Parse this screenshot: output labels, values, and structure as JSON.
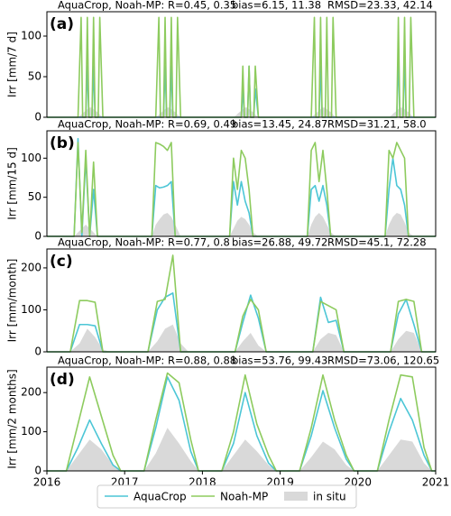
{
  "chart_data": [
    {
      "type": "line",
      "label": "(a)",
      "ylabel": "Irr [mm/7 d]",
      "stats": [
        "AquaCrop, Noah-MP: R=0.45, 0.35",
        "bias=6.15, 11.38",
        "RMSD=23.33, 42.14"
      ],
      "xlim": [
        2016,
        2021
      ],
      "ylim": [
        0,
        130
      ],
      "yticks": [
        0,
        50,
        100
      ],
      "x": [
        2016,
        2016.4,
        2016.44,
        2016.46,
        2016.5,
        2016.52,
        2016.54,
        2016.58,
        2016.6,
        2016.62,
        2016.66,
        2016.68,
        2016.72,
        2017.4,
        2017.44,
        2017.46,
        2017.5,
        2017.52,
        2017.54,
        2017.58,
        2017.6,
        2017.62,
        2017.66,
        2017.68,
        2017.72,
        2018.4,
        2018.44,
        2018.46,
        2018.5,
        2018.52,
        2018.54,
        2018.58,
        2018.6,
        2018.62,
        2018.66,
        2018.68,
        2018.72,
        2019.4,
        2019.44,
        2019.46,
        2019.5,
        2019.52,
        2019.54,
        2019.58,
        2019.6,
        2019.62,
        2019.66,
        2019.68,
        2019.72,
        2020.4,
        2020.44,
        2020.46,
        2020.5,
        2020.52,
        2020.54,
        2020.58,
        2020.6,
        2020.62,
        2020.66,
        2020.68,
        2020.72,
        2021
      ],
      "series": [
        {
          "name": "AquaCrop",
          "color": "#4cc6d6",
          "style": "line",
          "values": [
            0,
            0,
            0,
            0,
            0,
            63,
            0,
            0,
            63,
            0,
            0,
            0,
            0,
            0,
            0,
            0,
            0,
            63,
            0,
            0,
            63,
            0,
            0,
            0,
            0,
            0,
            0,
            0,
            0,
            35,
            0,
            0,
            63,
            0,
            0,
            35,
            0,
            0,
            0,
            0,
            0,
            63,
            0,
            0,
            0,
            0,
            0,
            0,
            0,
            0,
            0,
            0,
            0,
            75,
            0,
            0,
            75,
            0,
            0,
            0,
            0,
            0
          ]
        },
        {
          "name": "Noah-MP",
          "color": "#8dcb5e",
          "style": "line",
          "values": [
            0,
            0,
            123,
            0,
            0,
            123,
            0,
            0,
            123,
            0,
            0,
            123,
            0,
            0,
            123,
            0,
            0,
            123,
            0,
            0,
            123,
            0,
            0,
            123,
            0,
            0,
            0,
            0,
            0,
            63,
            0,
            0,
            63,
            0,
            0,
            63,
            0,
            0,
            123,
            0,
            0,
            123,
            0,
            0,
            123,
            0,
            0,
            123,
            0,
            0,
            0,
            0,
            0,
            123,
            0,
            0,
            123,
            0,
            0,
            123,
            0,
            0
          ]
        },
        {
          "name": "in situ",
          "color": "#d9d9d9",
          "style": "area",
          "values": [
            0,
            0,
            3,
            5,
            8,
            10,
            12,
            12,
            10,
            8,
            6,
            3,
            0,
            0,
            3,
            5,
            8,
            10,
            12,
            12,
            10,
            8,
            6,
            3,
            0,
            0,
            3,
            5,
            8,
            10,
            12,
            12,
            10,
            8,
            6,
            3,
            0,
            0,
            3,
            5,
            8,
            10,
            12,
            12,
            10,
            8,
            6,
            3,
            0,
            0,
            3,
            5,
            8,
            10,
            12,
            12,
            10,
            8,
            6,
            3,
            0,
            0
          ]
        }
      ]
    },
    {
      "type": "line",
      "label": "(b)",
      "ylabel": "Irr [mm/15 d]",
      "stats": [
        "AquaCrop, Noah-MP: R=0.69, 0.49",
        "bias=13.45, 24.87",
        "RMSD=31.21, 58.0"
      ],
      "xlim": [
        2016,
        2021
      ],
      "ylim": [
        0,
        135
      ],
      "yticks": [
        0,
        50,
        100
      ],
      "x": [
        2016,
        2016.35,
        2016.4,
        2016.45,
        2016.5,
        2016.55,
        2016.6,
        2016.65,
        2016.72,
        2017.35,
        2017.4,
        2017.45,
        2017.5,
        2017.55,
        2017.6,
        2017.65,
        2017.72,
        2018.35,
        2018.4,
        2018.45,
        2018.5,
        2018.55,
        2018.6,
        2018.65,
        2018.72,
        2019.35,
        2019.4,
        2019.45,
        2019.5,
        2019.55,
        2019.6,
        2019.65,
        2019.72,
        2020.35,
        2020.4,
        2020.45,
        2020.5,
        2020.55,
        2020.6,
        2020.65,
        2020.72,
        2021
      ],
      "series": [
        {
          "name": "AquaCrop",
          "color": "#4cc6d6",
          "style": "line",
          "values": [
            0,
            0,
            125,
            0,
            100,
            0,
            60,
            0,
            0,
            0,
            65,
            62,
            63,
            65,
            70,
            0,
            0,
            0,
            70,
            40,
            70,
            45,
            30,
            0,
            0,
            0,
            60,
            65,
            45,
            65,
            40,
            0,
            0,
            0,
            60,
            100,
            65,
            60,
            40,
            0,
            0,
            0
          ]
        },
        {
          "name": "Noah-MP",
          "color": "#8dcb5e",
          "style": "line",
          "values": [
            0,
            0,
            120,
            5,
            110,
            0,
            95,
            0,
            0,
            0,
            120,
            118,
            115,
            110,
            120,
            0,
            0,
            0,
            100,
            60,
            110,
            100,
            60,
            0,
            0,
            0,
            110,
            120,
            70,
            110,
            60,
            0,
            0,
            0,
            110,
            100,
            120,
            110,
            100,
            0,
            0,
            0
          ]
        },
        {
          "name": "in situ",
          "color": "#d9d9d9",
          "style": "area",
          "values": [
            0,
            0,
            5,
            10,
            15,
            10,
            5,
            0,
            0,
            0,
            15,
            22,
            28,
            30,
            25,
            15,
            0,
            0,
            10,
            20,
            25,
            22,
            15,
            5,
            0,
            0,
            15,
            25,
            30,
            25,
            15,
            5,
            0,
            0,
            15,
            25,
            30,
            28,
            18,
            5,
            0,
            0
          ]
        }
      ]
    },
    {
      "type": "line",
      "label": "(c)",
      "ylabel": "Irr [mm/month]",
      "stats": [
        "AquaCrop, Noah-MP: R=0.77, 0.8",
        "bias=26.88, 49.72",
        "RMSD=45.1, 72.28"
      ],
      "xlim": [
        2016,
        2021
      ],
      "ylim": [
        0,
        245
      ],
      "yticks": [
        0,
        100,
        200
      ],
      "x": [
        2016,
        2016.3,
        2016.42,
        2016.52,
        2016.62,
        2016.72,
        2016.82,
        2017.3,
        2017.42,
        2017.52,
        2017.62,
        2017.72,
        2017.82,
        2018.3,
        2018.42,
        2018.52,
        2018.62,
        2018.72,
        2018.82,
        2019.3,
        2019.42,
        2019.52,
        2019.62,
        2019.72,
        2019.82,
        2020.3,
        2020.42,
        2020.52,
        2020.62,
        2020.72,
        2020.82,
        2021
      ],
      "series": [
        {
          "name": "AquaCrop",
          "color": "#4cc6d6",
          "style": "line",
          "values": [
            0,
            0,
            65,
            65,
            62,
            0,
            0,
            0,
            100,
            130,
            140,
            0,
            0,
            0,
            0,
            70,
            135,
            80,
            0,
            0,
            0,
            130,
            70,
            75,
            0,
            0,
            0,
            90,
            125,
            65,
            0,
            0
          ]
        },
        {
          "name": "Noah-MP",
          "color": "#8dcb5e",
          "style": "line",
          "values": [
            0,
            0,
            122,
            122,
            118,
            0,
            0,
            0,
            120,
            125,
            230,
            0,
            0,
            0,
            0,
            85,
            125,
            100,
            0,
            0,
            0,
            120,
            110,
            100,
            0,
            0,
            0,
            120,
            125,
            120,
            0,
            0
          ]
        },
        {
          "name": "in situ",
          "color": "#d9d9d9",
          "style": "area",
          "values": [
            0,
            0,
            20,
            55,
            35,
            5,
            0,
            0,
            25,
            55,
            65,
            20,
            0,
            0,
            0,
            25,
            45,
            15,
            0,
            0,
            0,
            30,
            45,
            40,
            0,
            0,
            0,
            30,
            50,
            45,
            0,
            0
          ]
        }
      ]
    },
    {
      "type": "line",
      "label": "(d)",
      "ylabel": "Irr [mm/2 months]",
      "stats": [
        "AquaCrop, Noah-MP: R=0.88, 0.88",
        "bias=53.76, 99.43",
        "RMSD=73.06, 120.65"
      ],
      "xlim": [
        2016,
        2021
      ],
      "xticks": [
        2016,
        2017,
        2018,
        2019,
        2020,
        2021
      ],
      "ylim": [
        0,
        265
      ],
      "yticks": [
        0,
        100,
        200
      ],
      "x": [
        2016,
        2016.25,
        2016.4,
        2016.55,
        2016.7,
        2016.85,
        2016.95,
        2017.25,
        2017.4,
        2017.55,
        2017.7,
        2017.85,
        2017.95,
        2018.25,
        2018.4,
        2018.55,
        2018.7,
        2018.85,
        2018.95,
        2019.25,
        2019.4,
        2019.55,
        2019.7,
        2019.85,
        2019.95,
        2020.25,
        2020.4,
        2020.55,
        2020.7,
        2020.85,
        2020.95,
        2021
      ],
      "series": [
        {
          "name": "AquaCrop",
          "color": "#4cc6d6",
          "style": "line",
          "values": [
            0,
            0,
            60,
            130,
            70,
            15,
            0,
            0,
            110,
            240,
            180,
            50,
            0,
            0,
            70,
            200,
            90,
            20,
            0,
            0,
            90,
            205,
            110,
            30,
            0,
            0,
            100,
            185,
            130,
            40,
            0,
            0
          ]
        },
        {
          "name": "Noah-MP",
          "color": "#8dcb5e",
          "style": "line",
          "values": [
            0,
            0,
            120,
            240,
            140,
            40,
            0,
            0,
            130,
            250,
            225,
            80,
            0,
            0,
            100,
            245,
            120,
            40,
            0,
            0,
            110,
            245,
            130,
            40,
            0,
            0,
            130,
            245,
            240,
            60,
            0,
            0
          ]
        },
        {
          "name": "in situ",
          "color": "#d9d9d9",
          "style": "area",
          "values": [
            0,
            0,
            40,
            80,
            55,
            15,
            0,
            0,
            45,
            110,
            70,
            25,
            0,
            0,
            40,
            80,
            50,
            15,
            0,
            0,
            35,
            75,
            55,
            15,
            0,
            0,
            40,
            80,
            75,
            20,
            0,
            0
          ]
        }
      ]
    }
  ]
}
